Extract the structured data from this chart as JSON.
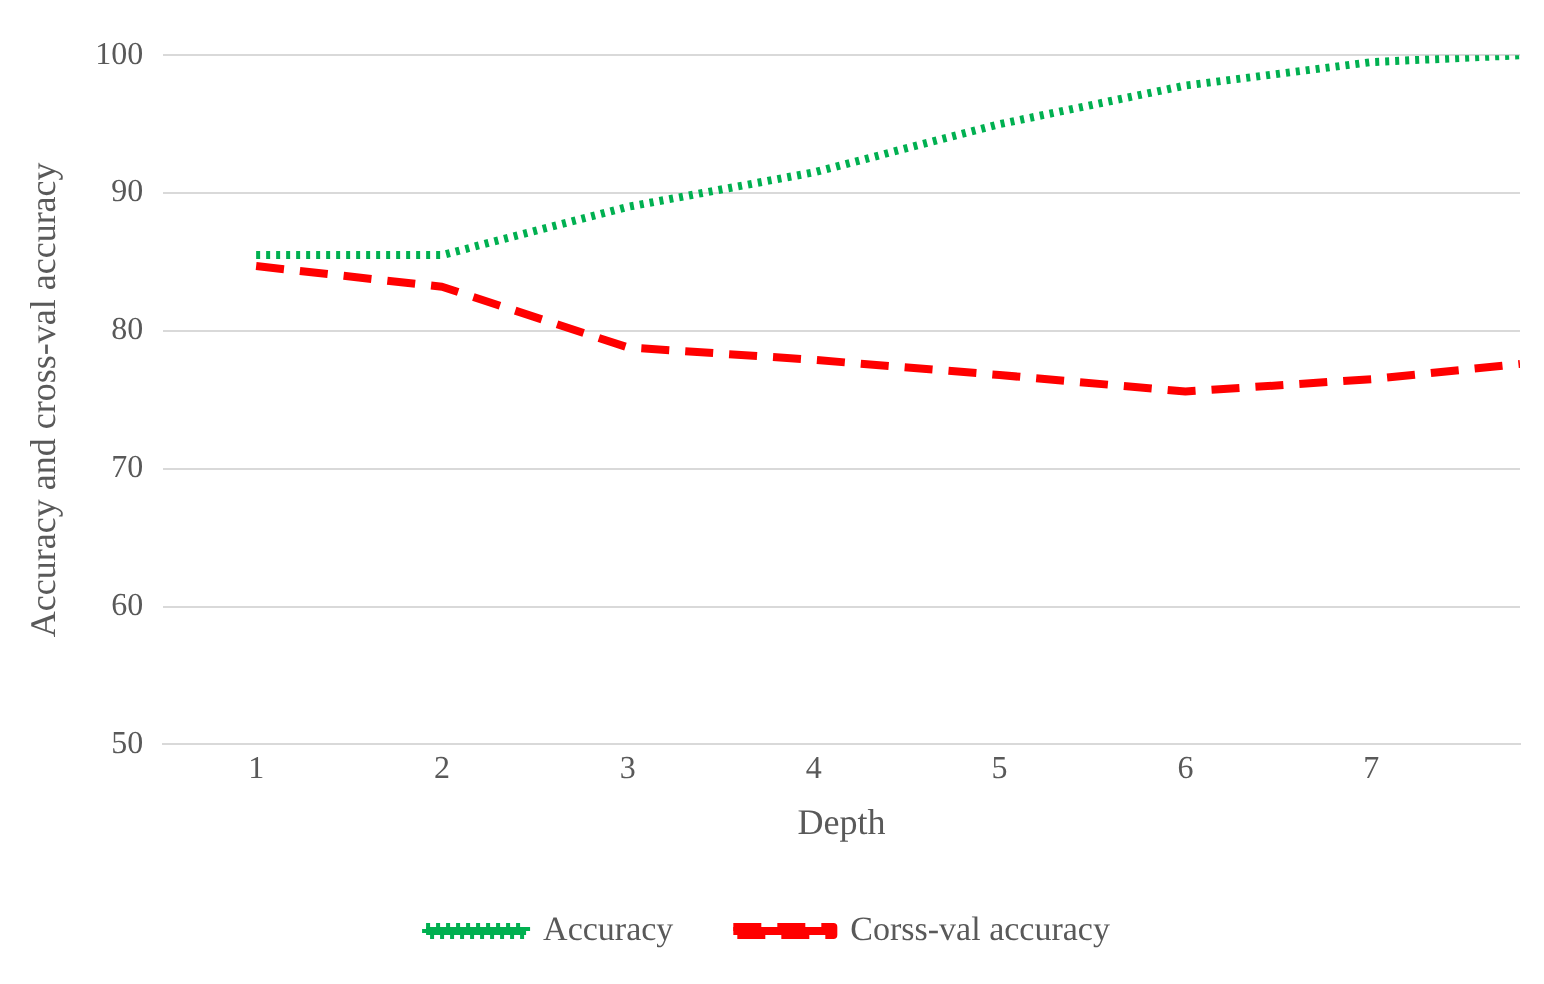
{
  "chart_data": {
    "type": "line",
    "xlabel": "Depth",
    "ylabel": "Accuracy and cross-val accuracy",
    "x": [
      1,
      2,
      3,
      4,
      5,
      6,
      7,
      7.8
    ],
    "xlim": [
      0.5,
      7.8
    ],
    "xticks": [
      1,
      2,
      3,
      4,
      5,
      6,
      7
    ],
    "ylim": [
      50,
      100
    ],
    "yticks": [
      50,
      60,
      70,
      80,
      90,
      100
    ],
    "grid": "y",
    "legend": "bottom",
    "marker": "none",
    "series": [
      {
        "name": "Accuracy",
        "color": "#00b050",
        "line_style": "dotted",
        "values": [
          85.5,
          85.5,
          89,
          91.5,
          95,
          97.8,
          99.5,
          100
        ]
      },
      {
        "name": "Corss-val accuracy",
        "color": "#ff0000",
        "line_style": "dashed",
        "values": [
          84.7,
          83.2,
          78.8,
          77.9,
          76.8,
          75.6,
          76.5,
          77.6
        ]
      }
    ]
  }
}
